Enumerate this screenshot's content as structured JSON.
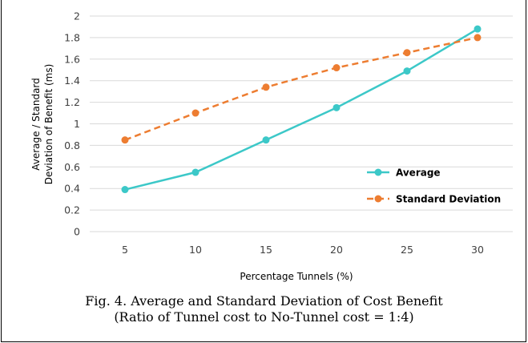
{
  "top_partial_text": "p                                                                    g",
  "chart_data": {
    "type": "line",
    "x": [
      5,
      10,
      15,
      20,
      25,
      30
    ],
    "xlabel": "Percentage Tunnels (%)",
    "ylabel_lines": [
      "Average / Standard",
      "Deviation of Benefit (ms)"
    ],
    "ylim": [
      0,
      2
    ],
    "yticks": [
      "0",
      "0.2",
      "0.4",
      "0.6",
      "0.8",
      "1",
      "1.2",
      "1.4",
      "1.6",
      "1.8",
      "2"
    ],
    "xticks": [
      "5",
      "10",
      "15",
      "20",
      "25",
      "30"
    ],
    "grid": true,
    "legend_position": "bottom-right",
    "series": [
      {
        "name": "Average",
        "values": [
          0.39,
          0.55,
          0.85,
          1.15,
          1.49,
          1.88
        ],
        "color": "#3CC8C8",
        "style": "solid"
      },
      {
        "name": "Standard Deviation",
        "values": [
          0.85,
          1.1,
          1.34,
          1.52,
          1.66,
          1.8
        ],
        "color": "#ED7D31",
        "style": "dashed"
      }
    ]
  },
  "caption": {
    "line1": "Fig. 4.   Average and Standard Deviation of Cost Benefit",
    "line2": "(Ratio of Tunnel cost to No-Tunnel cost = 1:4)"
  }
}
